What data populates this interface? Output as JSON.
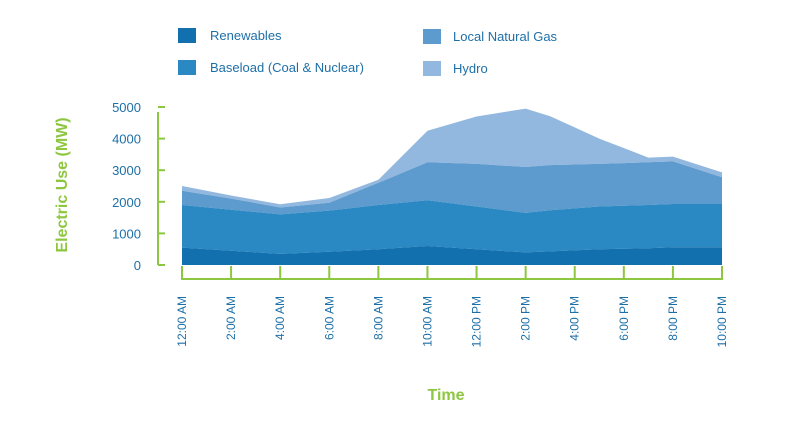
{
  "chart_data": {
    "type": "area",
    "stacked": true,
    "title": "",
    "xlabel": "Time",
    "ylabel": "Electric Use (MW)",
    "ylim": [
      0,
      5000
    ],
    "yticks": [
      {
        "label": "5000",
        "value": 5000
      },
      {
        "label": "4000",
        "value": 4000
      },
      {
        "label": "3000",
        "value": 3000
      },
      {
        "label": "2000",
        "value": 2000
      },
      {
        "label": "1000",
        "value": 1000
      },
      {
        "label": "0",
        "value": 0
      }
    ],
    "xtick_labels": [
      "12:00 AM",
      "2:00 AM",
      "4:00 AM",
      "6:00 AM",
      "8:00 AM",
      "10:00 AM",
      "12:00 PM",
      "2:00 PM",
      "4:00 PM",
      "6:00 PM",
      "8:00 PM",
      "10:00 PM"
    ],
    "x_hours": [
      0,
      2,
      4,
      6,
      8,
      10,
      12,
      14,
      15,
      17,
      19,
      20,
      22
    ],
    "legend_placement": "top",
    "grid": false,
    "series": [
      {
        "name": "Renewables",
        "color": "#1170ad",
        "values": [
          550,
          450,
          350,
          420,
          500,
          600,
          500,
          400,
          430,
          500,
          530,
          560,
          560
        ]
      },
      {
        "name": "Baseload (Coal & Nuclear)",
        "color": "#2a88c3",
        "values": [
          1350,
          1300,
          1250,
          1300,
          1400,
          1450,
          1350,
          1250,
          1300,
          1350,
          1370,
          1370,
          1370
        ]
      },
      {
        "name": "Local Natural Gas",
        "color": "#5d9acd",
        "values": [
          450,
          350,
          220,
          250,
          700,
          1200,
          1350,
          1450,
          1430,
          1350,
          1350,
          1350,
          850
        ]
      },
      {
        "name": "Hydro",
        "color": "#93b8df",
        "values": [
          150,
          100,
          100,
          150,
          100,
          1000,
          1500,
          1850,
          1550,
          800,
          150,
          150,
          150
        ]
      }
    ]
  }
}
